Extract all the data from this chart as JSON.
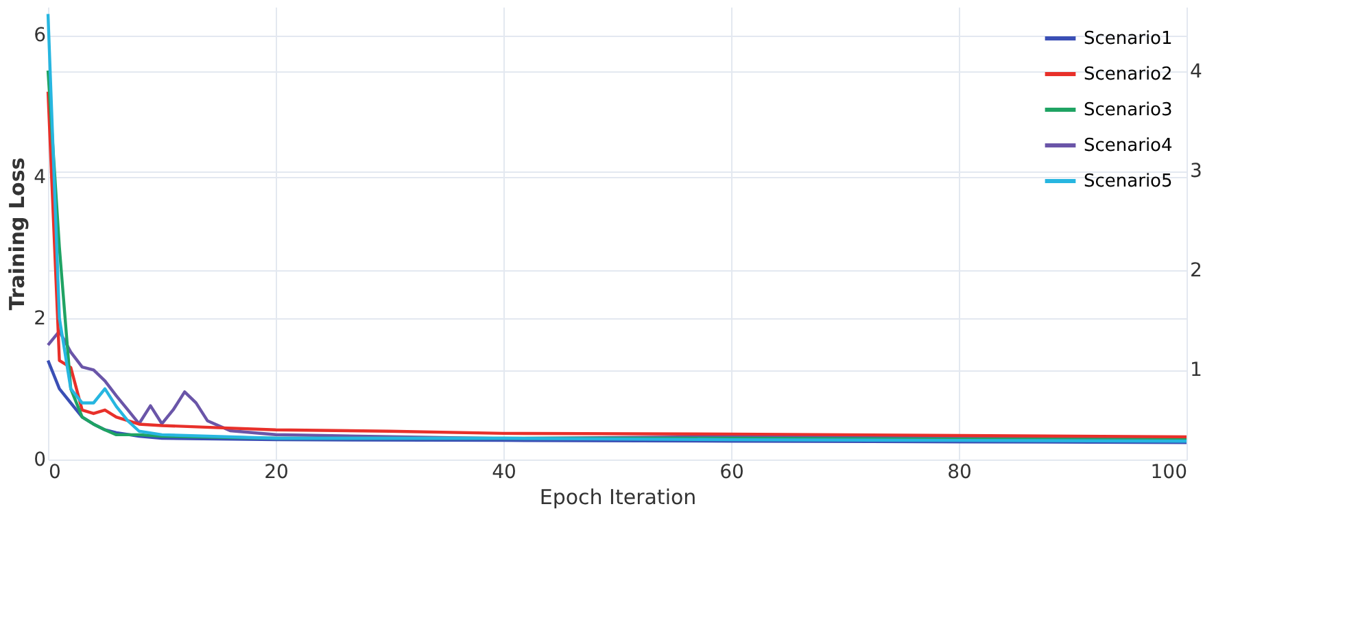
{
  "chart_data": {
    "type": "line",
    "xlabel": "Epoch Iteration",
    "ylabel": "Training Loss",
    "xlim": [
      0,
      100
    ],
    "xticks": [
      0,
      20,
      40,
      60,
      80,
      100
    ],
    "ylim": [
      0,
      6.4
    ],
    "yticks": [
      0,
      2,
      4,
      6
    ],
    "y2lim": [
      0.1,
      4.65
    ],
    "y2ticks": [
      1,
      2,
      3,
      4
    ],
    "grid": true,
    "legend": "top right",
    "line_style": "solid",
    "series": [
      {
        "name": "Scenario1",
        "color": "#3a4fb5",
        "x": [
          0,
          1,
          2,
          3,
          4,
          5,
          6,
          8,
          10,
          20,
          40,
          60,
          80,
          100
        ],
        "values": [
          1.4,
          1.0,
          0.8,
          0.6,
          0.5,
          0.42,
          0.38,
          0.33,
          0.3,
          0.28,
          0.27,
          0.26,
          0.25,
          0.24
        ]
      },
      {
        "name": "Scenario2",
        "color": "#e8302a",
        "x": [
          0,
          1,
          2,
          3,
          4,
          5,
          6,
          8,
          10,
          15,
          20,
          30,
          40,
          60,
          80,
          100
        ],
        "values": [
          5.2,
          1.4,
          1.3,
          0.7,
          0.65,
          0.7,
          0.6,
          0.5,
          0.48,
          0.45,
          0.42,
          0.4,
          0.37,
          0.36,
          0.34,
          0.32
        ]
      },
      {
        "name": "Scenario3",
        "color": "#1fa363",
        "x": [
          0,
          1,
          2,
          3,
          4,
          5,
          6,
          8,
          10,
          20,
          40,
          60,
          80,
          100
        ],
        "values": [
          5.5,
          3.0,
          1.0,
          0.6,
          0.5,
          0.42,
          0.35,
          0.35,
          0.33,
          0.3,
          0.3,
          0.3,
          0.29,
          0.28
        ]
      },
      {
        "name": "Scenario4",
        "color": "#6a55a8",
        "axis": "y2",
        "x": [
          0,
          1,
          2,
          3,
          4,
          5,
          6,
          7,
          8,
          9,
          10,
          11,
          12,
          13,
          14,
          16,
          20,
          40,
          60,
          80,
          100
        ],
        "values": [
          1.25,
          1.39,
          1.18,
          1.03,
          1.0,
          0.89,
          0.74,
          0.6,
          0.46,
          0.64,
          0.46,
          0.6,
          0.78,
          0.67,
          0.49,
          0.39,
          0.35,
          0.31,
          0.33,
          0.32,
          0.31
        ]
      },
      {
        "name": "Scenario5",
        "color": "#27b6e0",
        "x": [
          0,
          1,
          2,
          3,
          4,
          5,
          6,
          7,
          8,
          10,
          20,
          40,
          60,
          80,
          100
        ],
        "values": [
          6.3,
          2.0,
          1.0,
          0.8,
          0.8,
          1.0,
          0.75,
          0.55,
          0.4,
          0.35,
          0.3,
          0.3,
          0.28,
          0.27,
          0.26
        ]
      }
    ]
  }
}
